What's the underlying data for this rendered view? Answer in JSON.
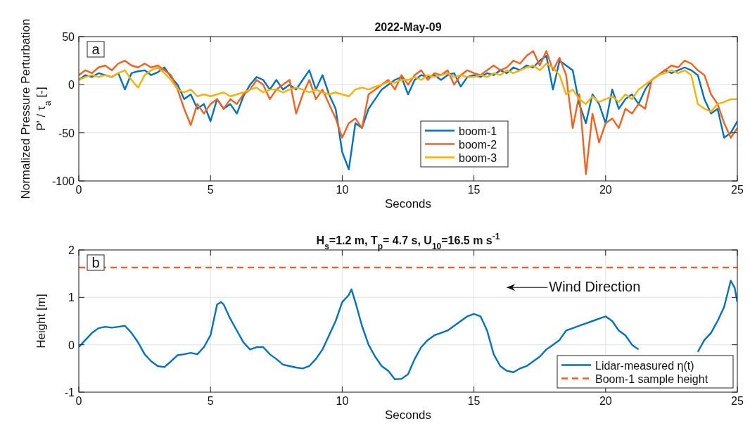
{
  "chart_data": [
    {
      "type": "line",
      "title": "2022-May-09",
      "xlabel": "Seconds",
      "ylabel": "Normalized Pressure Perturbation\nP' / τ$_{a}$ [-]",
      "annotations": [
        "a"
      ],
      "x": [
        0,
        0.25,
        0.5,
        0.75,
        1,
        1.25,
        1.5,
        1.75,
        2,
        2.25,
        2.5,
        2.75,
        3,
        3.25,
        3.5,
        3.75,
        4,
        4.25,
        4.5,
        4.75,
        5,
        5.25,
        5.5,
        5.75,
        6,
        6.25,
        6.5,
        6.75,
        7,
        7.25,
        7.5,
        7.75,
        8,
        8.25,
        8.5,
        8.75,
        9,
        9.25,
        9.5,
        9.75,
        10,
        10.25,
        10.5,
        10.75,
        11,
        11.25,
        11.5,
        11.75,
        12,
        12.25,
        12.5,
        12.75,
        13,
        13.25,
        13.5,
        13.75,
        14,
        14.25,
        14.5,
        14.75,
        15,
        15.25,
        15.5,
        15.75,
        16,
        16.25,
        16.5,
        16.75,
        17,
        17.25,
        17.5,
        17.75,
        18,
        18.25,
        18.5,
        18.75,
        19,
        19.25,
        19.5,
        19.75,
        20,
        20.25,
        20.5,
        20.75,
        21,
        21.25,
        21.5,
        21.75,
        22,
        22.25,
        22.5,
        22.75,
        23,
        23.25,
        23.5,
        23.75,
        24,
        24.25,
        24.5,
        24.75,
        25
      ],
      "series": [
        {
          "name": "boom-1",
          "color": "#0072bd",
          "values": [
            5,
            10,
            8,
            12,
            10,
            8,
            12,
            -5,
            12,
            14,
            15,
            10,
            13,
            18,
            8,
            0,
            -15,
            -10,
            -25,
            -20,
            -38,
            -15,
            -25,
            -20,
            -30,
            -12,
            0,
            8,
            5,
            -5,
            5,
            -5,
            0,
            -5,
            5,
            15,
            -5,
            10,
            -10,
            -25,
            -70,
            -88,
            -40,
            -45,
            -25,
            -15,
            -5,
            0,
            5,
            8,
            -10,
            5,
            10,
            8,
            10,
            5,
            10,
            12,
            -2,
            8,
            10,
            8,
            12,
            10,
            15,
            12,
            18,
            15,
            20,
            18,
            25,
            30,
            -5,
            25,
            20,
            15,
            -20,
            -40,
            -10,
            -20,
            -40,
            -5,
            -25,
            -15,
            -10,
            -20,
            -5,
            5,
            10,
            15,
            12,
            15,
            18,
            15,
            10,
            -15,
            -30,
            -25,
            -55,
            -50,
            -38
          ]
        },
        {
          "name": "boom-2",
          "color": "#f4601f",
          "values": [
            10,
            15,
            12,
            18,
            20,
            15,
            22,
            25,
            20,
            18,
            22,
            18,
            20,
            15,
            10,
            -5,
            -25,
            -42,
            -20,
            -30,
            -20,
            -15,
            -25,
            -15,
            -20,
            -10,
            -5,
            5,
            0,
            -15,
            -5,
            0,
            5,
            -30,
            -10,
            5,
            -15,
            -5,
            -20,
            -35,
            -55,
            -40,
            -35,
            -45,
            -10,
            -5,
            0,
            5,
            -5,
            10,
            0,
            10,
            15,
            5,
            12,
            10,
            15,
            0,
            10,
            15,
            12,
            10,
            15,
            20,
            15,
            18,
            25,
            22,
            30,
            35,
            20,
            35,
            15,
            28,
            10,
            -45,
            -10,
            -93,
            -30,
            -60,
            -40,
            -35,
            -45,
            -25,
            -30,
            -20,
            -25,
            5,
            10,
            15,
            20,
            18,
            25,
            22,
            15,
            10,
            -10,
            -20,
            -40,
            -55,
            -45
          ]
        },
        {
          "name": "boom-3",
          "color": "#fbb000",
          "values": [
            5,
            8,
            10,
            8,
            10,
            8,
            12,
            15,
            5,
            -3,
            10,
            15,
            18,
            12,
            5,
            -5,
            -8,
            -5,
            -12,
            -10,
            -12,
            -10,
            -8,
            -12,
            -10,
            -8,
            -5,
            -3,
            -8,
            -5,
            -5,
            -8,
            -5,
            -3,
            -5,
            -8,
            -5,
            -8,
            -10,
            -8,
            -10,
            -12,
            -5,
            -3,
            -5,
            -2,
            0,
            3,
            2,
            5,
            5,
            8,
            5,
            10,
            8,
            10,
            12,
            8,
            10,
            8,
            8,
            10,
            8,
            12,
            10,
            15,
            12,
            15,
            18,
            20,
            15,
            22,
            18,
            10,
            -10,
            -5,
            -15,
            -20,
            -12,
            -18,
            -15,
            -12,
            -18,
            -10,
            -15,
            -5,
            0,
            5,
            10,
            12,
            15,
            12,
            15,
            10,
            -20,
            -25,
            -28,
            -20,
            -18,
            -15,
            -15
          ]
        }
      ],
      "xlim": [
        0,
        25
      ],
      "xticks": [
        0,
        5,
        10,
        15,
        20,
        25
      ],
      "ylim": [
        -100,
        50
      ],
      "yticks": [
        -100,
        -50,
        0,
        50
      ],
      "grid": true,
      "legend": "bottom"
    },
    {
      "type": "line",
      "title": "H$_{s}$=1.2 m, T$_{p}$= 4.7 s, U$_{10}$=16.5 m s$^{-1}$",
      "xlabel": "Seconds",
      "ylabel": "Height [m]",
      "annotations": [
        "b",
        "Wind Direction"
      ],
      "series": [
        {
          "name": "Lidar-measured η(t)",
          "color": "#0072bd",
          "x": [
            0,
            0.25,
            0.5,
            0.75,
            1,
            1.25,
            1.5,
            1.75,
            2,
            2.25,
            2.5,
            2.75,
            3,
            3.25,
            3.5,
            3.75,
            4,
            4.25,
            4.5,
            4.75,
            5,
            5.25,
            5.4,
            5.5,
            5.75,
            6,
            6.25,
            6.5,
            6.75,
            7,
            7.25,
            7.5,
            7.75,
            8,
            8.25,
            8.5,
            8.75,
            9,
            9.25,
            9.5,
            9.75,
            10,
            10.25,
            10.35,
            10.5,
            10.75,
            11,
            11.25,
            11.5,
            11.75,
            12,
            12.25,
            12.5,
            12.75,
            13,
            13.25,
            13.5,
            13.75,
            14,
            14.25,
            14.5,
            14.75,
            15,
            15.25,
            15.5,
            15.75,
            16,
            16.25,
            16.5,
            16.75,
            17,
            17.25,
            17.5,
            17.75,
            18,
            18.25,
            18.5,
            18.75,
            19,
            19.25,
            19.5,
            19.75,
            20,
            20.25,
            20.5,
            20.75,
            21,
            21.25,
            21.5,
            22.5,
            23.5,
            23.75,
            24,
            24.25,
            24.5,
            24.75,
            24.9,
            25
          ],
          "values": [
            -0.05,
            0.1,
            0.25,
            0.35,
            0.38,
            0.36,
            0.38,
            0.4,
            0.25,
            0.05,
            -0.2,
            -0.35,
            -0.45,
            -0.47,
            -0.35,
            -0.22,
            -0.2,
            -0.17,
            -0.2,
            -0.05,
            0.2,
            0.85,
            0.9,
            0.85,
            0.55,
            0.3,
            0.05,
            -0.1,
            -0.05,
            -0.05,
            -0.2,
            -0.3,
            -0.42,
            -0.45,
            -0.48,
            -0.5,
            -0.45,
            -0.3,
            -0.1,
            0.2,
            0.5,
            0.9,
            1.05,
            1.17,
            0.9,
            0.4,
            0,
            -0.25,
            -0.45,
            -0.55,
            -0.73,
            -0.72,
            -0.62,
            -0.3,
            -0.05,
            0.1,
            0.2,
            0.25,
            0.3,
            0.4,
            0.5,
            0.6,
            0.65,
            0.6,
            0.3,
            -0.2,
            -0.45,
            -0.55,
            -0.58,
            -0.5,
            -0.45,
            -0.35,
            -0.25,
            -0.1,
            0,
            0.1,
            0.3,
            0.35,
            0.4,
            0.45,
            0.5,
            0.55,
            0.6,
            0.5,
            0.3,
            0.2,
            0,
            -0.1,
            null,
            null,
            -0.15,
            0.1,
            0.25,
            0.5,
            0.8,
            1.35,
            1.2,
            0.9
          ]
        },
        {
          "name": "Boom-1 sample height",
          "color": "#f4601f",
          "line_style": "dashed",
          "x": [
            0,
            25
          ],
          "values": [
            1.63,
            1.63
          ]
        }
      ],
      "xlim": [
        0,
        25
      ],
      "xticks": [
        0,
        5,
        10,
        15,
        20,
        25
      ],
      "ylim": [
        -1,
        2
      ],
      "yticks": [
        -1,
        0,
        1,
        2
      ],
      "grid": true,
      "legend": "bottom right"
    }
  ]
}
